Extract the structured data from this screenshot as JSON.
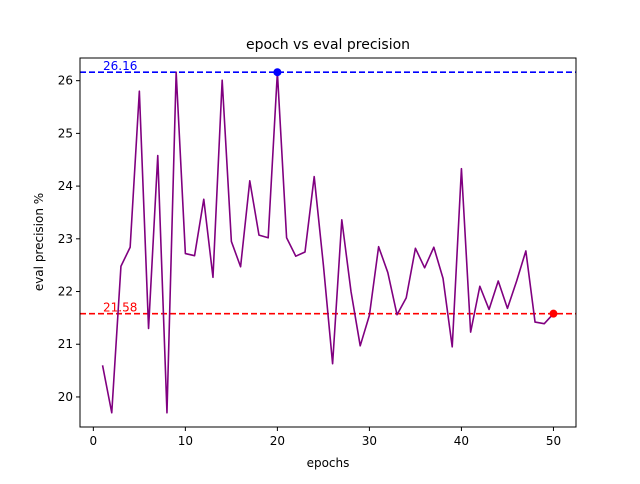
{
  "chart_data": {
    "type": "line",
    "title": "epoch vs eval precision",
    "xlabel": "epochs",
    "ylabel": "eval precision %",
    "xlim": [
      -1.45,
      52.45
    ],
    "ylim": [
      19.43,
      26.43
    ],
    "xticks": [
      0,
      10,
      20,
      30,
      40,
      50
    ],
    "yticks": [
      20,
      21,
      22,
      23,
      24,
      25,
      26
    ],
    "grid": false,
    "series": [
      {
        "color": "#800080",
        "x": [
          1,
          2,
          3,
          4,
          5,
          6,
          7,
          8,
          9,
          10,
          11,
          12,
          13,
          14,
          15,
          16,
          17,
          18,
          19,
          20,
          21,
          22,
          23,
          24,
          25,
          26,
          27,
          28,
          29,
          30,
          31,
          32,
          33,
          34,
          35,
          36,
          37,
          38,
          39,
          40,
          41,
          42,
          43,
          44,
          45,
          46,
          47,
          48,
          49,
          50
        ],
        "values": [
          20.6,
          19.7,
          22.48,
          22.84,
          25.8,
          21.3,
          24.58,
          19.7,
          26.16,
          22.72,
          22.68,
          23.75,
          22.27,
          26.01,
          22.95,
          22.47,
          24.1,
          23.07,
          23.02,
          26.16,
          23.02,
          22.67,
          22.75,
          24.18,
          22.5,
          20.63,
          23.36,
          22.0,
          20.97,
          21.55,
          22.85,
          22.36,
          21.56,
          21.88,
          22.82,
          22.45,
          22.84,
          22.25,
          20.95,
          24.33,
          21.23,
          22.1,
          21.66,
          22.2,
          21.68,
          22.2,
          22.77,
          21.42,
          21.39,
          21.58
        ]
      }
    ],
    "reference_lines": [
      {
        "value": 26.16,
        "label": "26.16",
        "color": "#0000ff",
        "style": "dashed"
      },
      {
        "value": 21.58,
        "label": "21.58",
        "color": "#ff0000",
        "style": "dashed"
      }
    ],
    "markers": [
      {
        "x": 20,
        "y": 26.16,
        "color": "#0000ff"
      },
      {
        "x": 50,
        "y": 21.58,
        "color": "#ff0000"
      }
    ]
  }
}
